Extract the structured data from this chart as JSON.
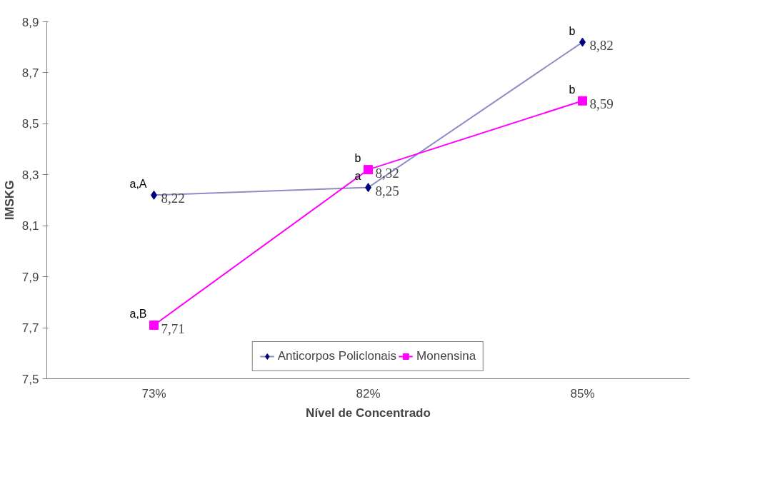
{
  "chart_data": {
    "type": "line",
    "xlabel": "Nível de Concentrado",
    "ylabel": "IMSKG",
    "categories": [
      "73%",
      "82%",
      "85%"
    ],
    "series": [
      {
        "name": "Anticorpos Policlonais",
        "color": "#000080",
        "marker": "diamond",
        "values": [
          8.22,
          8.25,
          8.82
        ],
        "value_labels": [
          "8,22",
          "8,25",
          "8,82"
        ]
      },
      {
        "name": "Monensina",
        "color": "#ff00ff",
        "marker": "square",
        "values": [
          7.71,
          8.32,
          8.59
        ],
        "value_labels": [
          "7,71",
          "8,32",
          "8,59"
        ]
      }
    ],
    "ylim": [
      7.5,
      8.9
    ],
    "yticks": [
      {
        "value": 7.5,
        "label": "7,5"
      },
      {
        "value": 7.7,
        "label": "7,7"
      },
      {
        "value": 7.9,
        "label": "7,9"
      },
      {
        "value": 8.1,
        "label": "8,1"
      },
      {
        "value": 8.3,
        "label": "8,3"
      },
      {
        "value": 8.5,
        "label": "8,5"
      },
      {
        "value": 8.7,
        "label": "8,7"
      },
      {
        "value": 8.9,
        "label": "8,9"
      }
    ],
    "annotations": [
      {
        "text": "a,A",
        "x": "73%",
        "y": 8.22
      },
      {
        "text": "a,B",
        "x": "73%",
        "y": 7.71
      },
      {
        "text": "b",
        "x": "82%",
        "y": 8.32
      },
      {
        "text": "a",
        "x": "82%",
        "y": 8.25
      },
      {
        "text": "b",
        "x": "85%",
        "y": 8.82
      },
      {
        "text": "b",
        "x": "85%",
        "y": 8.59
      }
    ],
    "grid": false,
    "legend": "bottom",
    "line_style": "solid"
  }
}
